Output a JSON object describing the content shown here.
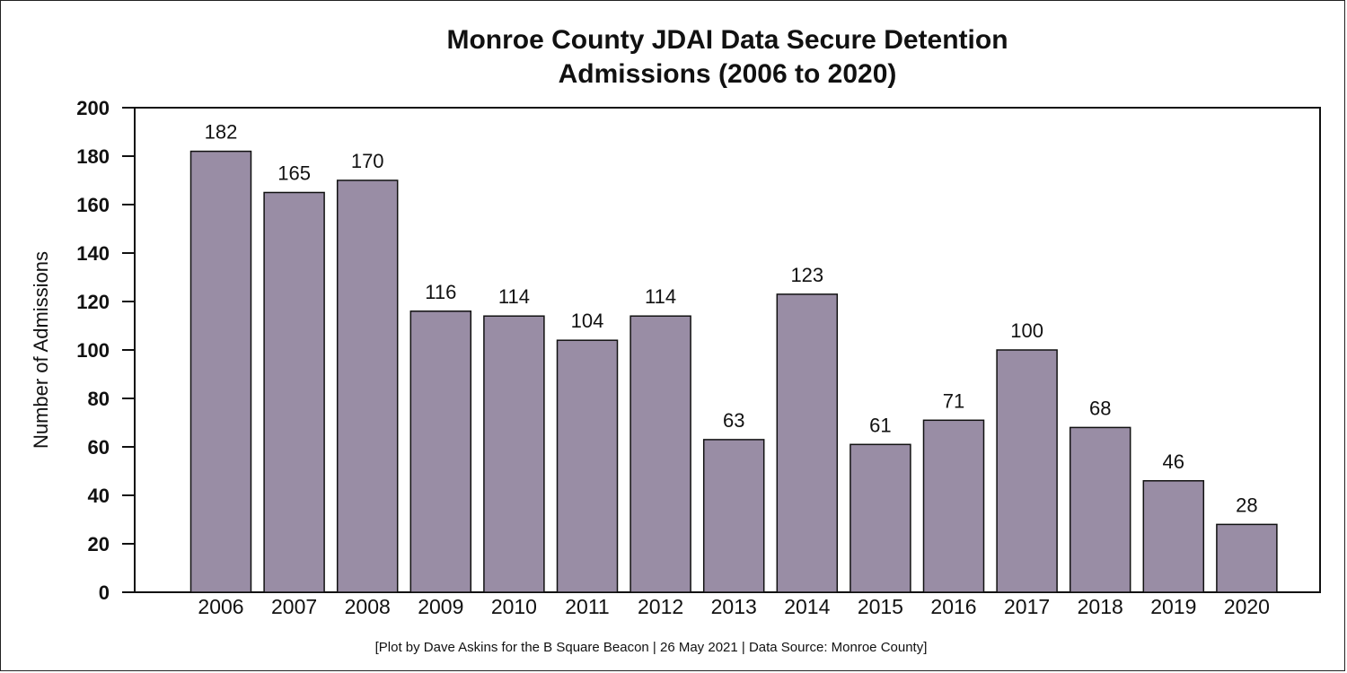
{
  "chart_data": {
    "type": "bar",
    "title_lines": [
      "Monroe County JDAI Data Secure Detention",
      "Admissions (2006 to 2020)"
    ],
    "xlabel": "",
    "ylabel": "Number of Admissions",
    "categories": [
      "2006",
      "2007",
      "2008",
      "2009",
      "2010",
      "2011",
      "2012",
      "2013",
      "2014",
      "2015",
      "2016",
      "2017",
      "2018",
      "2019",
      "2020"
    ],
    "values": [
      182,
      165,
      170,
      116,
      114,
      104,
      114,
      63,
      123,
      61,
      71,
      100,
      68,
      46,
      28
    ],
    "ylim": [
      0,
      200
    ],
    "yticks": [
      0,
      20,
      40,
      60,
      80,
      100,
      120,
      140,
      160,
      180,
      200
    ],
    "grid": false,
    "bar_color": "#998da5",
    "caption": "[Plot by Dave Askins for the B Square Beacon | 26 May 2021 | Data Source: Monroe County]"
  }
}
